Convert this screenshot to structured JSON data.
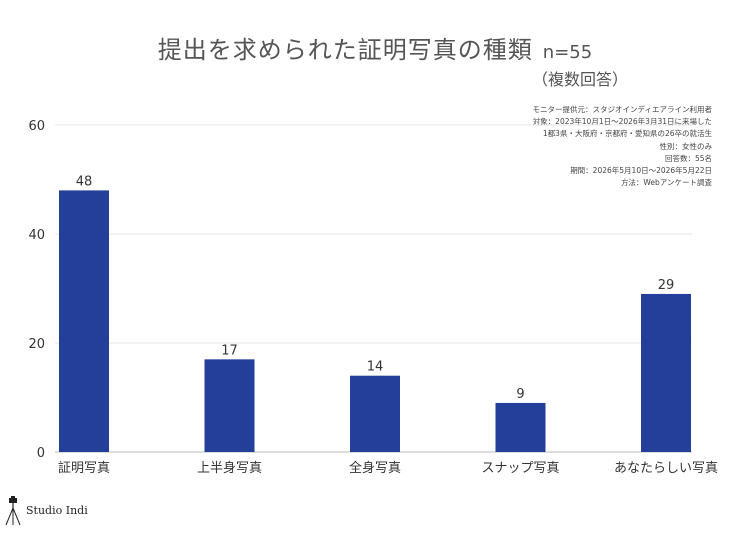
{
  "chart_data": {
    "type": "bar",
    "title": "提出を求められた証明写真の種類",
    "n_label": "n=55",
    "subtitle": "（複数回答）",
    "categories": [
      "証明写真",
      "上半身写真",
      "全身写真",
      "スナップ写真",
      "あなたらしい写真"
    ],
    "values": [
      48,
      17,
      14,
      9,
      29
    ],
    "yticks": [
      0,
      20,
      40,
      60
    ],
    "ylim": [
      0,
      60
    ],
    "grid": true,
    "bar_color": "#233f9a",
    "notes": [
      "モニター提供元：スタジオインディエアライン利用者",
      "対象：2023年10月1日〜2026年3月31日に来場した",
      "1都3県・大阪府・京都府・愛知県の26卒の就活生",
      "性別：女性のみ",
      "回答数：55名",
      "期間：2026年5月10日〜2026年5月22日",
      "方法：Webアンケート調査"
    ]
  },
  "logo": {
    "text": "Studio Indi"
  }
}
